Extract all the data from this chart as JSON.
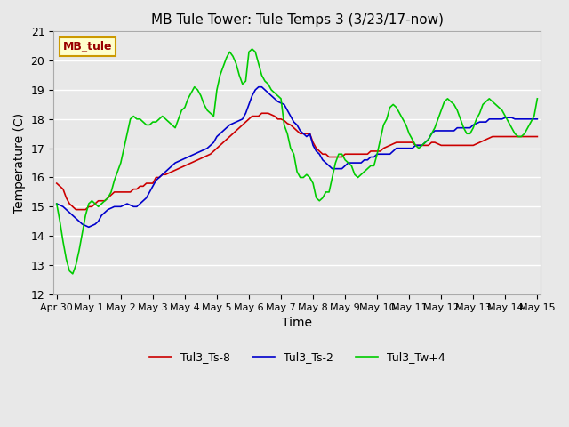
{
  "title": "MB Tule Tower: Tule Temps 3 (3/23/17-now)",
  "xlabel": "Time",
  "ylabel": "Temperature (C)",
  "ylim": [
    12.0,
    21.0
  ],
  "yticks": [
    12.0,
    13.0,
    14.0,
    15.0,
    16.0,
    17.0,
    18.0,
    19.0,
    20.0,
    21.0
  ],
  "background_color": "#e8e8e8",
  "plot_bg_color": "#e8e8e8",
  "grid_color": "#ffffff",
  "legend_label_red": "Tul3_Ts-8",
  "legend_label_blue": "Tul3_Ts-2",
  "legend_label_green": "Tul3_Tw+4",
  "line_color_red": "#cc0000",
  "line_color_blue": "#0000cc",
  "line_color_green": "#00cc00",
  "annotation_text": "MB_tule",
  "annotation_bg": "#ffffcc",
  "annotation_border": "#cc9900",
  "annotation_text_color": "#990000",
  "xtick_labels": [
    "Apr 30",
    "May 1",
    "May 2",
    "May 3",
    "May 4",
    "May 5",
    "May 6",
    "May 7",
    "May 8",
    "May 9",
    "May 10",
    "May 11",
    "May 12",
    "May 13",
    "May 14",
    "May 15"
  ],
  "red_x": [
    0,
    0.1,
    0.2,
    0.3,
    0.4,
    0.5,
    0.6,
    0.7,
    0.8,
    0.9,
    1.0,
    1.1,
    1.2,
    1.3,
    1.4,
    1.5,
    1.6,
    1.7,
    1.8,
    1.9,
    2.0,
    2.1,
    2.2,
    2.3,
    2.4,
    2.5,
    2.6,
    2.7,
    2.8,
    2.9,
    3.0,
    3.1,
    3.2,
    3.3,
    3.4,
    3.5,
    3.6,
    3.7,
    3.8,
    3.9,
    4.0,
    4.1,
    4.2,
    4.3,
    4.4,
    4.5,
    4.6,
    4.7,
    4.8,
    4.9,
    5.0,
    5.1,
    5.2,
    5.3,
    5.4,
    5.5,
    5.6,
    5.7,
    5.8,
    5.9,
    6.0,
    6.1,
    6.2,
    6.3,
    6.4,
    6.5,
    6.6,
    6.7,
    6.8,
    6.9,
    7.0,
    7.1,
    7.2,
    7.3,
    7.4,
    7.5,
    7.6,
    7.7,
    7.8,
    7.9,
    8.0,
    8.1,
    8.2,
    8.3,
    8.4,
    8.5,
    8.6,
    8.7,
    8.8,
    8.9,
    9.0,
    9.1,
    9.2,
    9.3,
    9.4,
    9.5,
    9.6,
    9.7,
    9.8,
    9.9,
    10.0,
    10.1,
    10.2,
    10.3,
    10.4,
    10.5,
    10.6,
    10.7,
    10.8,
    10.9,
    11.0,
    11.1,
    11.2,
    11.3,
    11.4,
    11.5,
    11.6,
    11.7,
    11.8,
    11.9,
    12.0,
    12.1,
    12.2,
    12.3,
    12.4,
    12.5,
    12.6,
    12.7,
    12.8,
    12.9,
    13.0,
    13.1,
    13.2,
    13.3,
    13.4,
    13.5,
    13.6,
    13.7,
    13.8,
    13.9,
    14.0,
    14.1,
    14.2,
    14.3,
    14.4,
    14.5,
    14.6,
    14.7,
    14.8,
    14.9,
    15.0
  ],
  "red_y": [
    15.8,
    15.7,
    15.6,
    15.3,
    15.1,
    15.0,
    14.9,
    14.9,
    14.9,
    14.9,
    15.0,
    15.0,
    15.1,
    15.2,
    15.2,
    15.2,
    15.3,
    15.4,
    15.5,
    15.5,
    15.5,
    15.5,
    15.5,
    15.5,
    15.6,
    15.6,
    15.7,
    15.7,
    15.8,
    15.8,
    15.8,
    16.0,
    16.0,
    16.1,
    16.1,
    16.15,
    16.2,
    16.25,
    16.3,
    16.35,
    16.4,
    16.45,
    16.5,
    16.55,
    16.6,
    16.65,
    16.7,
    16.75,
    16.8,
    16.9,
    17.0,
    17.1,
    17.2,
    17.3,
    17.4,
    17.5,
    17.6,
    17.7,
    17.8,
    17.9,
    18.0,
    18.1,
    18.1,
    18.1,
    18.2,
    18.2,
    18.2,
    18.15,
    18.1,
    18.0,
    18.0,
    17.95,
    17.85,
    17.8,
    17.7,
    17.6,
    17.5,
    17.5,
    17.5,
    17.5,
    17.2,
    17.0,
    16.9,
    16.8,
    16.8,
    16.7,
    16.7,
    16.7,
    16.7,
    16.7,
    16.8,
    16.8,
    16.8,
    16.8,
    16.8,
    16.8,
    16.8,
    16.8,
    16.9,
    16.9,
    16.9,
    16.9,
    17.0,
    17.05,
    17.1,
    17.15,
    17.2,
    17.2,
    17.2,
    17.2,
    17.2,
    17.2,
    17.1,
    17.1,
    17.1,
    17.1,
    17.1,
    17.2,
    17.2,
    17.15,
    17.1,
    17.1,
    17.1,
    17.1,
    17.1,
    17.1,
    17.1,
    17.1,
    17.1,
    17.1,
    17.1,
    17.15,
    17.2,
    17.25,
    17.3,
    17.35,
    17.4,
    17.4,
    17.4,
    17.4,
    17.4,
    17.4,
    17.4,
    17.4,
    17.4,
    17.4,
    17.4,
    17.4,
    17.4,
    17.4,
    17.4
  ],
  "blue_x": [
    0,
    0.1,
    0.2,
    0.3,
    0.4,
    0.5,
    0.6,
    0.7,
    0.8,
    0.9,
    1.0,
    1.1,
    1.2,
    1.3,
    1.4,
    1.5,
    1.6,
    1.7,
    1.8,
    1.9,
    2.0,
    2.1,
    2.2,
    2.3,
    2.4,
    2.5,
    2.6,
    2.7,
    2.8,
    2.9,
    3.0,
    3.1,
    3.2,
    3.3,
    3.4,
    3.5,
    3.6,
    3.7,
    3.8,
    3.9,
    4.0,
    4.1,
    4.2,
    4.3,
    4.4,
    4.5,
    4.6,
    4.7,
    4.8,
    4.9,
    5.0,
    5.1,
    5.2,
    5.3,
    5.4,
    5.5,
    5.6,
    5.7,
    5.8,
    5.9,
    6.0,
    6.1,
    6.2,
    6.3,
    6.4,
    6.5,
    6.6,
    6.7,
    6.8,
    6.9,
    7.0,
    7.1,
    7.2,
    7.3,
    7.4,
    7.5,
    7.6,
    7.7,
    7.8,
    7.9,
    8.0,
    8.1,
    8.2,
    8.3,
    8.4,
    8.5,
    8.6,
    8.7,
    8.8,
    8.9,
    9.0,
    9.1,
    9.2,
    9.3,
    9.4,
    9.5,
    9.6,
    9.7,
    9.8,
    9.9,
    10.0,
    10.1,
    10.2,
    10.3,
    10.4,
    10.5,
    10.6,
    10.7,
    10.8,
    10.9,
    11.0,
    11.1,
    11.2,
    11.3,
    11.4,
    11.5,
    11.6,
    11.7,
    11.8,
    11.9,
    12.0,
    12.1,
    12.2,
    12.3,
    12.4,
    12.5,
    12.6,
    12.7,
    12.8,
    12.9,
    13.0,
    13.1,
    13.2,
    13.3,
    13.4,
    13.5,
    13.6,
    13.7,
    13.8,
    13.9,
    14.0,
    14.1,
    14.2,
    14.3,
    14.4,
    14.5,
    14.6,
    14.7,
    14.8,
    14.9,
    15.0
  ],
  "blue_y": [
    15.1,
    15.05,
    15.0,
    14.9,
    14.8,
    14.7,
    14.6,
    14.5,
    14.4,
    14.35,
    14.3,
    14.35,
    14.4,
    14.5,
    14.7,
    14.8,
    14.9,
    14.95,
    15.0,
    15.0,
    15.0,
    15.05,
    15.1,
    15.05,
    15.0,
    15.0,
    15.1,
    15.2,
    15.3,
    15.5,
    15.7,
    15.9,
    16.0,
    16.1,
    16.2,
    16.3,
    16.4,
    16.5,
    16.55,
    16.6,
    16.65,
    16.7,
    16.75,
    16.8,
    16.85,
    16.9,
    16.95,
    17.0,
    17.1,
    17.2,
    17.4,
    17.5,
    17.6,
    17.7,
    17.8,
    17.85,
    17.9,
    17.95,
    18.0,
    18.2,
    18.5,
    18.8,
    19.0,
    19.1,
    19.1,
    19.0,
    18.9,
    18.8,
    18.7,
    18.6,
    18.55,
    18.5,
    18.3,
    18.1,
    17.9,
    17.8,
    17.6,
    17.5,
    17.4,
    17.5,
    17.1,
    16.9,
    16.8,
    16.6,
    16.5,
    16.4,
    16.3,
    16.3,
    16.3,
    16.3,
    16.4,
    16.5,
    16.5,
    16.5,
    16.5,
    16.5,
    16.6,
    16.6,
    16.7,
    16.7,
    16.8,
    16.8,
    16.8,
    16.8,
    16.8,
    16.9,
    17.0,
    17.0,
    17.0,
    17.0,
    17.0,
    17.0,
    17.1,
    17.1,
    17.1,
    17.2,
    17.3,
    17.5,
    17.6,
    17.6,
    17.6,
    17.6,
    17.6,
    17.6,
    17.6,
    17.7,
    17.7,
    17.7,
    17.7,
    17.7,
    17.8,
    17.85,
    17.9,
    17.9,
    17.9,
    18.0,
    18.0,
    18.0,
    18.0,
    18.0,
    18.05,
    18.05,
    18.05,
    18.0,
    18.0,
    18.0,
    18.0,
    18.0,
    18.0,
    18.0,
    18.0
  ],
  "green_x": [
    0,
    0.1,
    0.2,
    0.3,
    0.4,
    0.5,
    0.6,
    0.7,
    0.8,
    0.9,
    1.0,
    1.1,
    1.2,
    1.3,
    1.4,
    1.5,
    1.6,
    1.7,
    1.8,
    1.9,
    2.0,
    2.1,
    2.2,
    2.3,
    2.4,
    2.5,
    2.6,
    2.7,
    2.8,
    2.9,
    3.0,
    3.1,
    3.2,
    3.3,
    3.4,
    3.5,
    3.6,
    3.7,
    3.8,
    3.9,
    4.0,
    4.1,
    4.2,
    4.3,
    4.4,
    4.5,
    4.6,
    4.7,
    4.8,
    4.9,
    5.0,
    5.1,
    5.2,
    5.3,
    5.4,
    5.5,
    5.6,
    5.7,
    5.8,
    5.9,
    6.0,
    6.1,
    6.2,
    6.3,
    6.4,
    6.5,
    6.6,
    6.7,
    6.8,
    6.9,
    7.0,
    7.1,
    7.2,
    7.3,
    7.4,
    7.5,
    7.6,
    7.7,
    7.8,
    7.9,
    8.0,
    8.1,
    8.2,
    8.3,
    8.4,
    8.5,
    8.6,
    8.7,
    8.8,
    8.9,
    9.0,
    9.1,
    9.2,
    9.3,
    9.4,
    9.5,
    9.6,
    9.7,
    9.8,
    9.9,
    10.0,
    10.1,
    10.2,
    10.3,
    10.4,
    10.5,
    10.6,
    10.7,
    10.8,
    10.9,
    11.0,
    11.1,
    11.2,
    11.3,
    11.4,
    11.5,
    11.6,
    11.7,
    11.8,
    11.9,
    12.0,
    12.1,
    12.2,
    12.3,
    12.4,
    12.5,
    12.6,
    12.7,
    12.8,
    12.9,
    13.0,
    13.1,
    13.2,
    13.3,
    13.4,
    13.5,
    13.6,
    13.7,
    13.8,
    13.9,
    14.0,
    14.1,
    14.2,
    14.3,
    14.4,
    14.5,
    14.6,
    14.7,
    14.8,
    14.9,
    15.0
  ],
  "green_y": [
    15.1,
    14.5,
    13.8,
    13.2,
    12.8,
    12.7,
    13.0,
    13.5,
    14.1,
    14.7,
    15.1,
    15.2,
    15.1,
    15.0,
    15.1,
    15.2,
    15.3,
    15.5,
    15.9,
    16.2,
    16.5,
    17.0,
    17.5,
    18.0,
    18.1,
    18.0,
    18.0,
    17.9,
    17.8,
    17.8,
    17.9,
    17.9,
    18.0,
    18.1,
    18.0,
    17.9,
    17.8,
    17.7,
    18.0,
    18.3,
    18.4,
    18.7,
    18.9,
    19.1,
    19.0,
    18.8,
    18.5,
    18.3,
    18.2,
    18.1,
    19.0,
    19.5,
    19.8,
    20.1,
    20.3,
    20.15,
    19.9,
    19.5,
    19.2,
    19.3,
    20.3,
    20.4,
    20.3,
    19.9,
    19.5,
    19.3,
    19.2,
    19.0,
    18.9,
    18.8,
    18.7,
    17.8,
    17.5,
    17.0,
    16.8,
    16.2,
    16.0,
    16.0,
    16.1,
    16.0,
    15.8,
    15.3,
    15.2,
    15.3,
    15.5,
    15.5,
    16.0,
    16.5,
    16.8,
    16.8,
    16.6,
    16.5,
    16.4,
    16.1,
    16.0,
    16.1,
    16.2,
    16.3,
    16.4,
    16.4,
    16.8,
    17.3,
    17.8,
    18.0,
    18.4,
    18.5,
    18.4,
    18.2,
    18.0,
    17.8,
    17.5,
    17.3,
    17.1,
    17.0,
    17.1,
    17.2,
    17.3,
    17.5,
    17.7,
    18.0,
    18.3,
    18.6,
    18.7,
    18.6,
    18.5,
    18.3,
    18.0,
    17.7,
    17.5,
    17.5,
    17.7,
    18.0,
    18.2,
    18.5,
    18.6,
    18.7,
    18.6,
    18.5,
    18.4,
    18.3,
    18.1,
    17.9,
    17.7,
    17.5,
    17.4,
    17.4,
    17.5,
    17.7,
    17.9,
    18.1,
    18.7
  ]
}
